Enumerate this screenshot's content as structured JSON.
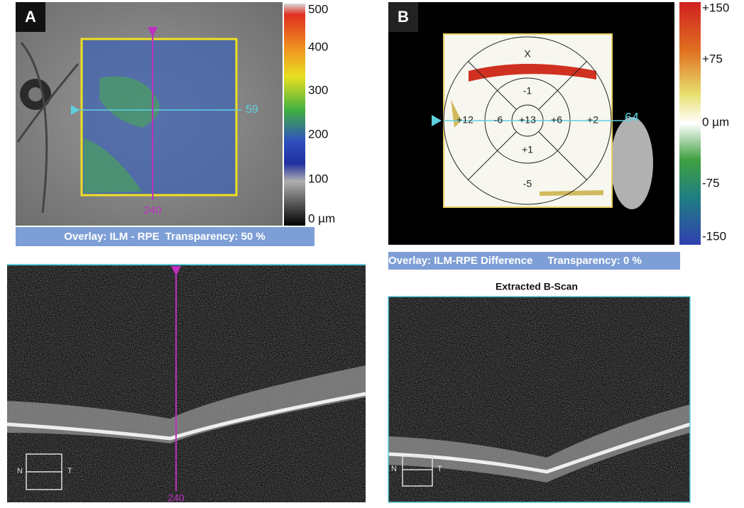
{
  "panel_a": {
    "label": "A",
    "colorbar_labels": [
      "500",
      "400",
      "300",
      "200",
      "100",
      "0 µm"
    ],
    "horizontal_marker": "59",
    "vertical_marker": "240",
    "overlay": "Overlay: ILM - RPE  Transparency: 50 %",
    "bscan_marker": "240",
    "orientation": [
      "N",
      "T"
    ]
  },
  "panel_b": {
    "label": "B",
    "colorbar_labels": [
      "+150",
      "+75",
      "0 µm",
      "-75",
      "-150"
    ],
    "grid_labels": [
      "X",
      "-1",
      "-6",
      "+13",
      "+6",
      "+2",
      "+12",
      "+1",
      "-5"
    ],
    "horizontal_marker": "64",
    "overlay": "Overlay: ILM-RPE Difference     Transparency: 0 %",
    "bscan_title": "Extracted B-Scan",
    "orientation": [
      "N",
      "T"
    ]
  }
}
